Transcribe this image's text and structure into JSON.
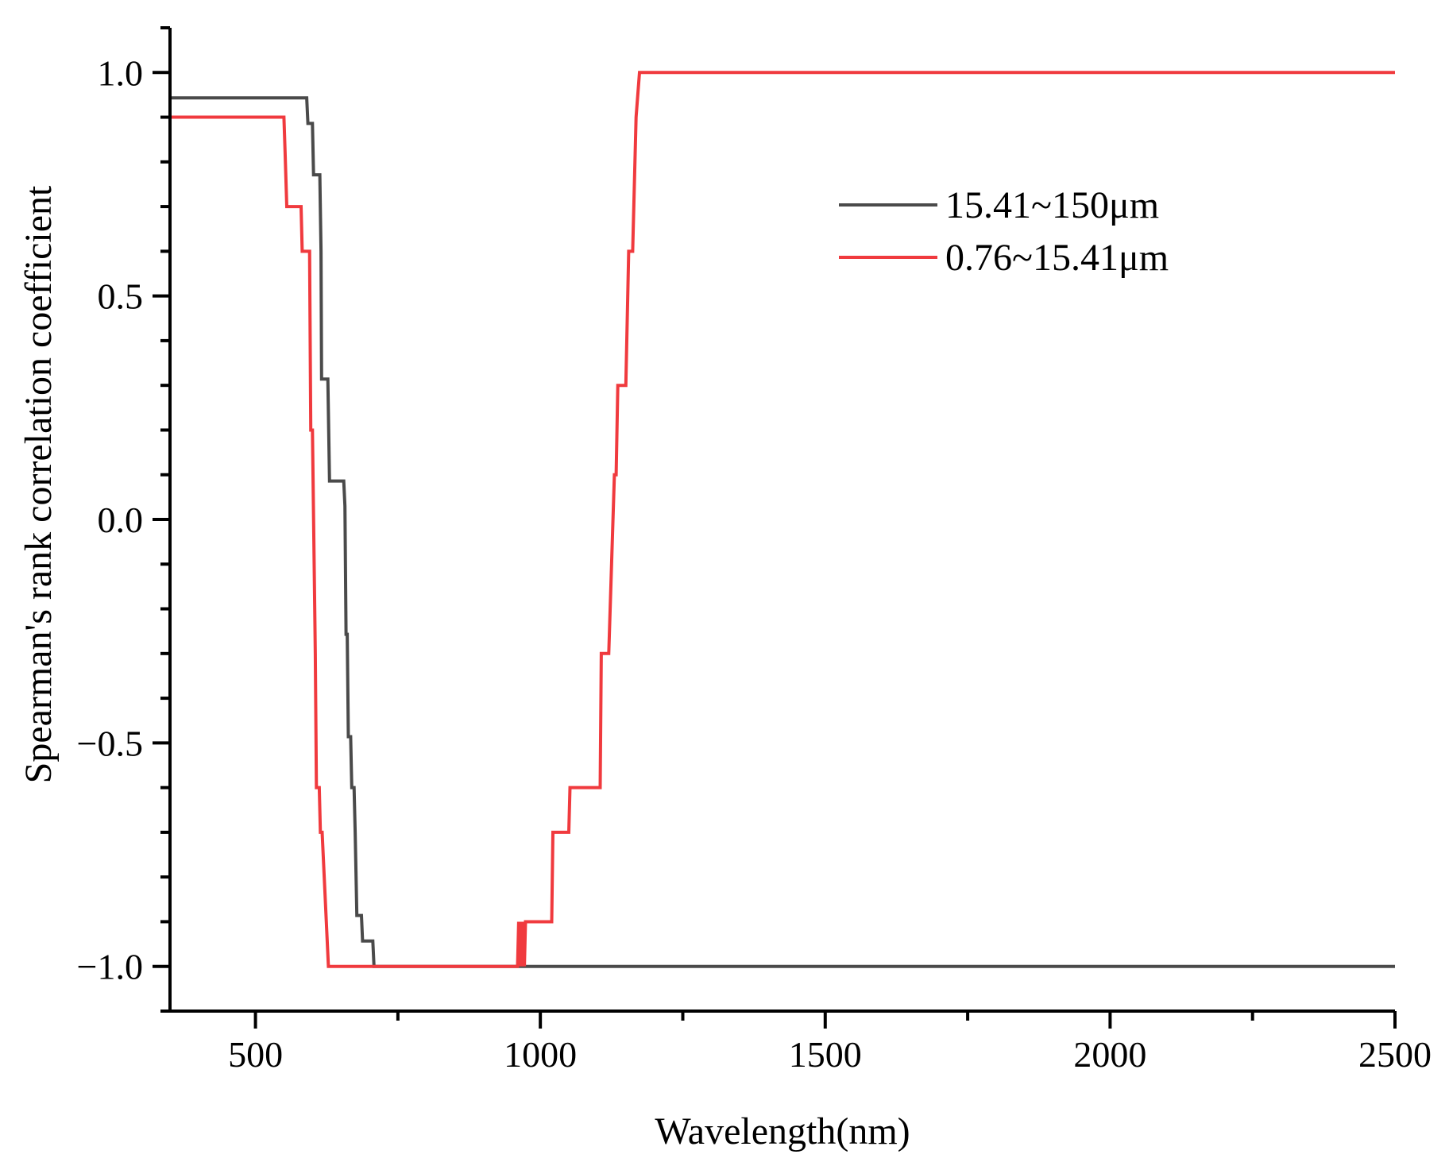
{
  "chart_data": {
    "type": "line",
    "title": "",
    "xlabel": "Wavelength(nm)",
    "ylabel": "Spearman's rank correlation coefficient",
    "xlim": [
      350,
      2500
    ],
    "ylim": [
      -1.1,
      1.1
    ],
    "xticks": [
      500,
      1000,
      1500,
      2000,
      2500
    ],
    "xtick_labels": [
      "500",
      "1000",
      "1500",
      "2000",
      "2500"
    ],
    "yticks": [
      -1.0,
      -0.5,
      0.0,
      0.5,
      1.0
    ],
    "ytick_labels": [
      "−1.0",
      "−0.5",
      "0.0",
      "0.5",
      "1.0"
    ],
    "grid": false,
    "legend_position": "top-right",
    "series": [
      {
        "name": "15.41~150μm",
        "color": "#4a4a4a",
        "points": [
          [
            350,
            0.943
          ],
          [
            590,
            0.943
          ],
          [
            592,
            0.886
          ],
          [
            600,
            0.886
          ],
          [
            602,
            0.771
          ],
          [
            613,
            0.771
          ],
          [
            615,
            0.6
          ],
          [
            616,
            0.314
          ],
          [
            627,
            0.314
          ],
          [
            630,
            0.086
          ],
          [
            655,
            0.086
          ],
          [
            657,
            0.03
          ],
          [
            659,
            -0.257
          ],
          [
            661,
            -0.257
          ],
          [
            663,
            -0.486
          ],
          [
            667,
            -0.486
          ],
          [
            669,
            -0.6
          ],
          [
            673,
            -0.6
          ],
          [
            675,
            -0.7
          ],
          [
            678,
            -0.886
          ],
          [
            686,
            -0.886
          ],
          [
            688,
            -0.943
          ],
          [
            706,
            -0.943
          ],
          [
            708,
            -1.0
          ],
          [
            2500,
            -1.0
          ]
        ]
      },
      {
        "name": "0.76~15.41μm",
        "color": "#f03a3e",
        "points": [
          [
            350,
            0.9
          ],
          [
            550,
            0.9
          ],
          [
            552,
            0.82
          ],
          [
            555,
            0.7
          ],
          [
            580,
            0.7
          ],
          [
            582,
            0.6
          ],
          [
            595,
            0.6
          ],
          [
            597,
            0.2
          ],
          [
            600,
            0.2
          ],
          [
            605,
            -0.3
          ],
          [
            607,
            -0.6
          ],
          [
            612,
            -0.6
          ],
          [
            614,
            -0.7
          ],
          [
            617,
            -0.7
          ],
          [
            628,
            -1.0
          ],
          [
            960,
            -1.0
          ],
          [
            962,
            -0.9
          ],
          [
            964,
            -1.0
          ],
          [
            966,
            -0.9
          ],
          [
            968,
            -1.0
          ],
          [
            970,
            -0.9
          ],
          [
            972,
            -1.0
          ],
          [
            974,
            -0.9
          ],
          [
            1020,
            -0.9
          ],
          [
            1022,
            -0.7
          ],
          [
            1050,
            -0.7
          ],
          [
            1052,
            -0.6
          ],
          [
            1105,
            -0.6
          ],
          [
            1107,
            -0.3
          ],
          [
            1120,
            -0.3
          ],
          [
            1130,
            0.1
          ],
          [
            1133,
            0.1
          ],
          [
            1136,
            0.3
          ],
          [
            1150,
            0.3
          ],
          [
            1155,
            0.6
          ],
          [
            1162,
            0.6
          ],
          [
            1168,
            0.9
          ],
          [
            1174,
            1.0
          ],
          [
            2500,
            1.0
          ]
        ]
      }
    ]
  }
}
